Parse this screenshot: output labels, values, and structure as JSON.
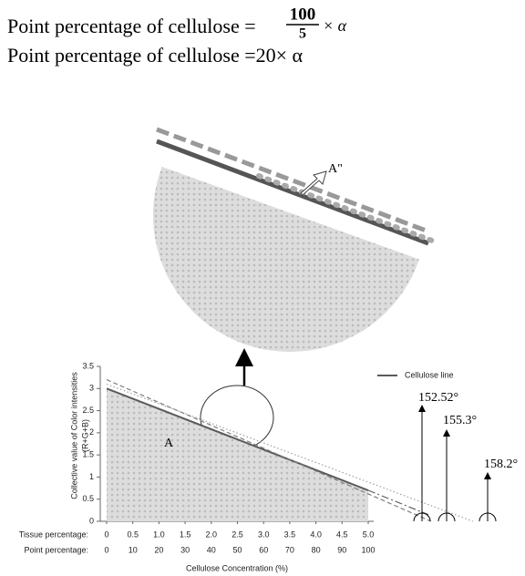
{
  "formula": {
    "line1": "Point percentage of cellulose =",
    "numerator": "100",
    "denominator": "5",
    "multiplier": "× α",
    "line2": "Point percentage of cellulose =20× α"
  },
  "chart_data": {
    "type": "line",
    "ylabel": "Collective value of Color intensities",
    "ylabel2": "(R+G+B)",
    "xlabel": "Cellulose Concentration (%)",
    "ylim": [
      0,
      3.5
    ],
    "yticks": [
      0,
      0.5,
      1,
      1.5,
      2,
      2.5,
      3,
      3.5
    ],
    "xtick_title": "Tissue percentage:",
    "xlim": [
      0,
      5
    ],
    "xticks": [
      0,
      0.5,
      {
        "value": 1,
        "label": "1.0"
      },
      1.5,
      {
        "value": 2,
        "label": "2.0"
      },
      2.5,
      {
        "value": 3,
        "label": "3.0"
      },
      3.5,
      {
        "value": 4,
        "label": "4.0"
      },
      4.5,
      {
        "value": 5,
        "label": "5.0"
      }
    ],
    "x2tick_title": "Point percentage:",
    "x2lim": [
      0,
      100
    ],
    "x2ticks": [
      0,
      10,
      20,
      30,
      40,
      50,
      60,
      70,
      80,
      90,
      100
    ],
    "series": [
      {
        "name": "Cellulose line",
        "color": "#5a5a5a",
        "style": "solid",
        "x": [
          0,
          5
        ],
        "values": [
          3,
          0.7
        ]
      },
      {
        "color": "#7f7f7f",
        "style": "dashed",
        "x": [
          0,
          6.2
        ],
        "values": [
          3.2,
          0
        ]
      },
      {
        "color": "#a0a0a0",
        "style": "dotted",
        "x": [
          0,
          7
        ],
        "values": [
          3.1,
          0
        ]
      },
      {
        "color": "#5a5a5a",
        "style": "dashdot",
        "x": [
          5,
          6.15
        ],
        "values": [
          0.7,
          0.15
        ]
      }
    ],
    "annotations": [
      "A",
      "A\"",
      "152.52°",
      "155.3°",
      "158.2°"
    ]
  }
}
